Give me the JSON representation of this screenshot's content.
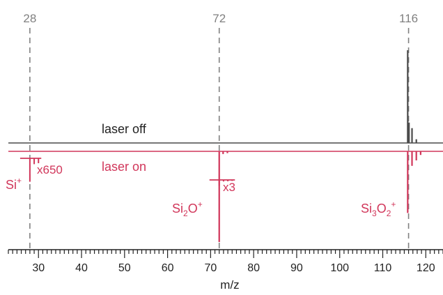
{
  "chart_data": {
    "type": "line",
    "xlabel": "m/z",
    "ylabel": "",
    "xlim": [
      23,
      124
    ],
    "major_ticks": [
      30,
      40,
      50,
      60,
      70,
      80,
      90,
      100,
      110,
      120
    ],
    "minor_tick_step": 1,
    "grid": false,
    "reference_lines": [
      {
        "x": 28,
        "label": "28"
      },
      {
        "x": 72,
        "label": "72"
      },
      {
        "x": 116,
        "label": "116"
      }
    ],
    "colors": {
      "laser_off": "#4a4a4a",
      "laser_on": "#d1365a",
      "reference": "#808080",
      "axis": "#222222"
    },
    "series": [
      {
        "name": "laser off",
        "key": "laser_off",
        "direction": "up",
        "peaks": [
          {
            "x": 115.8,
            "value": 1.0
          },
          {
            "x": 116.1,
            "value": 0.22
          },
          {
            "x": 116.8,
            "value": 0.16
          },
          {
            "x": 117.8,
            "value": 0.04
          }
        ]
      },
      {
        "name": "laser on",
        "key": "laser_on",
        "direction": "down",
        "peaks": [
          {
            "x": 72.0,
            "value": 1.0
          },
          {
            "x": 72.9,
            "value": 0.03
          },
          {
            "x": 73.9,
            "value": 0.02
          },
          {
            "x": 115.8,
            "value": 0.68
          },
          {
            "x": 116.8,
            "value": 0.16
          },
          {
            "x": 117.8,
            "value": 0.1
          },
          {
            "x": 118.8,
            "value": 0.04
          }
        ],
        "magnified_insets": [
          {
            "multiplier": "x650",
            "peaks": [
              {
                "x": 28.0,
                "value": 0.24
              },
              {
                "x": 29.0,
                "value": 0.06
              },
              {
                "x": 30.0,
                "value": 0.05
              }
            ]
          },
          {
            "multiplier": "x3",
            "peaks": [
              {
                "x": 72.0,
                "value": 0.3
              },
              {
                "x": 73.0,
                "value": 0.08
              },
              {
                "x": 74.0,
                "value": 0.07
              },
              {
                "x": 75.0,
                "value": 0.05
              }
            ]
          }
        ]
      }
    ],
    "ion_labels": [
      {
        "base": "Si",
        "parts": [
          {
            "text": "Si"
          },
          {
            "text": "+",
            "pos": "sup"
          }
        ]
      },
      {
        "base": "Si2O",
        "parts": [
          {
            "text": "Si"
          },
          {
            "text": "2",
            "pos": "sub"
          },
          {
            "text": "O"
          },
          {
            "text": "+",
            "pos": "sup"
          }
        ]
      },
      {
        "base": "Si3O2",
        "parts": [
          {
            "text": "Si"
          },
          {
            "text": "3",
            "pos": "sub"
          },
          {
            "text": "O"
          },
          {
            "text": "2",
            "pos": "sub"
          },
          {
            "text": "+",
            "pos": "sup"
          }
        ]
      }
    ]
  }
}
